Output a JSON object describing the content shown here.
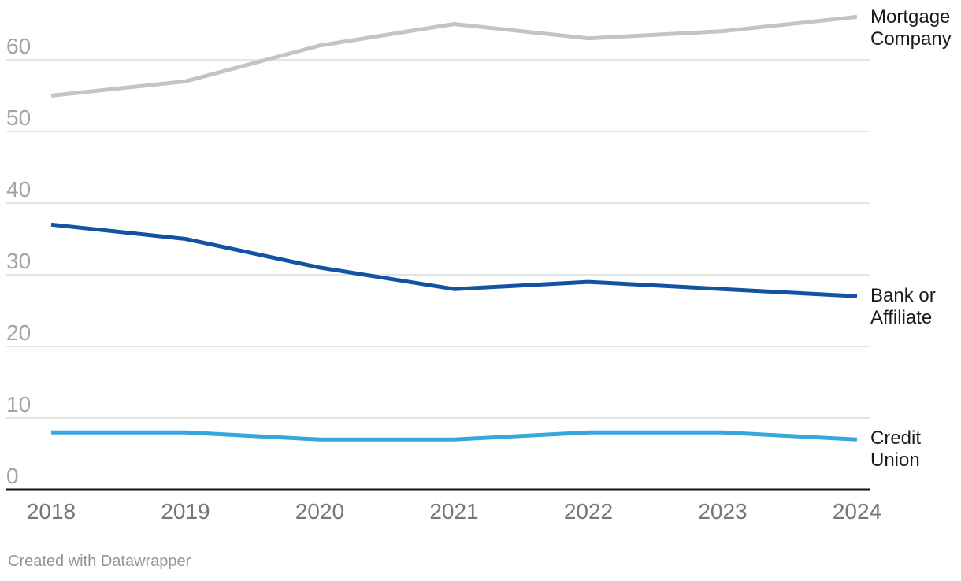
{
  "chart_data": {
    "type": "line",
    "title": "",
    "xlabel": "",
    "ylabel": "",
    "x": [
      2018,
      2019,
      2020,
      2021,
      2022,
      2023,
      2024
    ],
    "series": [
      {
        "name": "Mortgage Company",
        "color": "#c4c4c4",
        "values": [
          55,
          57,
          62,
          65,
          63,
          64,
          66
        ]
      },
      {
        "name": "Bank or Affiliate",
        "color": "#1353a2",
        "values": [
          37,
          35,
          31,
          28,
          29,
          28,
          27
        ]
      },
      {
        "name": "Credit Union",
        "color": "#38a6dc",
        "values": [
          8,
          8,
          7,
          7,
          8,
          8,
          7
        ]
      }
    ],
    "yticks": [
      0,
      10,
      20,
      30,
      40,
      50,
      60
    ],
    "ylim": [
      0,
      68
    ],
    "grid": true,
    "legend_position": "direct-labels-right"
  },
  "colors": {
    "gridline": "#e4e4e4",
    "axis_line": "#111111",
    "y_tick_label": "#a3a3a3",
    "x_tick_label": "#767676",
    "series_label": "#1a1a1a",
    "background": "#ffffff"
  },
  "footer": {
    "attribution": "Created with Datawrapper"
  }
}
